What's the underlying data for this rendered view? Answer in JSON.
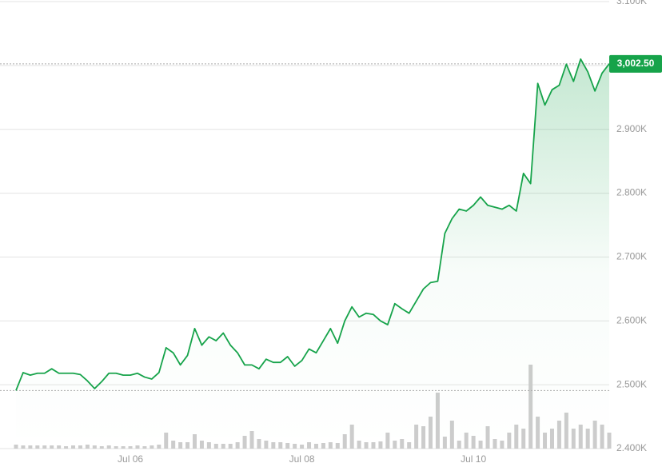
{
  "chart_data": {
    "type": "line",
    "color": "#16a34a",
    "volume_color": "#cccccc",
    "grid": true,
    "ylim": [
      2400,
      3100
    ],
    "yticks": [
      {
        "value": 2400,
        "label": "2.400K"
      },
      {
        "value": 2500,
        "label": "2.500K"
      },
      {
        "value": 2600,
        "label": "2.600K"
      },
      {
        "value": 2700,
        "label": "2.700K"
      },
      {
        "value": 2800,
        "label": "2.800K"
      },
      {
        "value": 2900,
        "label": "2.900K"
      },
      {
        "value": 3000,
        "label": "3.000K"
      },
      {
        "value": 3100,
        "label": "3.100K"
      }
    ],
    "current_price": 3002.5,
    "current_price_label": "3,002.50",
    "categories": [
      null,
      null,
      null,
      null,
      null,
      null,
      null,
      null,
      null,
      null,
      null,
      null,
      null,
      null,
      null,
      null,
      "Jul 06",
      null,
      null,
      null,
      null,
      null,
      null,
      null,
      null,
      null,
      null,
      null,
      null,
      null,
      null,
      null,
      null,
      null,
      null,
      null,
      null,
      null,
      null,
      null,
      "Jul 08",
      null,
      null,
      null,
      null,
      null,
      null,
      null,
      null,
      null,
      null,
      null,
      null,
      null,
      null,
      null,
      null,
      null,
      null,
      null,
      null,
      null,
      null,
      null,
      "Jul 10",
      null,
      null,
      null,
      null,
      null,
      null,
      null,
      null,
      null,
      null,
      null,
      null,
      null,
      null,
      null,
      null,
      null,
      null,
      null
    ],
    "values": [
      2491,
      2519,
      2515,
      2518,
      2518,
      2525,
      2518,
      2518,
      2518,
      2516,
      2506,
      2494,
      2505,
      2518,
      2518,
      2515,
      2515,
      2518,
      2512,
      2509,
      2519,
      2558,
      2550,
      2531,
      2546,
      2588,
      2562,
      2575,
      2569,
      2581,
      2562,
      2550,
      2531,
      2531,
      2525,
      2540,
      2535,
      2535,
      2544,
      2529,
      2538,
      2556,
      2550,
      2569,
      2588,
      2565,
      2600,
      2622,
      2606,
      2612,
      2610,
      2600,
      2594,
      2627,
      2619,
      2612,
      2631,
      2650,
      2660,
      2662,
      2737,
      2760,
      2775,
      2772,
      2781,
      2794,
      2781,
      2778,
      2775,
      2781,
      2772,
      2831,
      2815,
      2972,
      2938,
      2962,
      2969,
      3002,
      2975,
      3010,
      2990,
      2960,
      2988,
      3002.5
    ],
    "volume": [
      5,
      4,
      4,
      4,
      4,
      4,
      4,
      3,
      4,
      4,
      5,
      4,
      3,
      4,
      3,
      3,
      3,
      4,
      3,
      4,
      5,
      20,
      10,
      8,
      8,
      18,
      10,
      8,
      6,
      6,
      6,
      8,
      16,
      22,
      12,
      10,
      8,
      8,
      7,
      6,
      5,
      8,
      6,
      7,
      8,
      7,
      18,
      30,
      10,
      8,
      8,
      9,
      20,
      10,
      12,
      8,
      30,
      28,
      40,
      70,
      15,
      35,
      10,
      20,
      16,
      10,
      28,
      12,
      10,
      20,
      30,
      25,
      105,
      40,
      20,
      25,
      35,
      45,
      25,
      30,
      25,
      35,
      30,
      20
    ]
  }
}
